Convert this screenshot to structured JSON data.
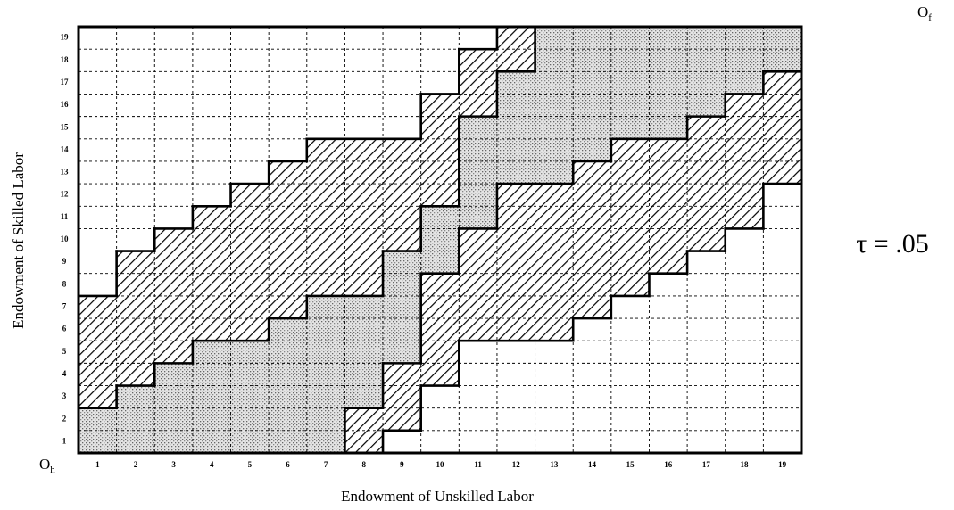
{
  "chart_data": {
    "type": "grid",
    "xlabel": "Endowment of Unskilled Labor",
    "ylabel": "Endowment of Skilled Labor",
    "annotation": "τ = .05",
    "origin_home": {
      "text": "O",
      "sub": "h"
    },
    "origin_foreign": {
      "text": "O",
      "sub": "f"
    },
    "xcategories": [
      "1",
      "2",
      "3",
      "4",
      "5",
      "6",
      "7",
      "8",
      "9",
      "10",
      "11",
      "12",
      "13",
      "14",
      "15",
      "16",
      "17",
      "18",
      "19"
    ],
    "ycategories": [
      "1",
      "2",
      "3",
      "4",
      "5",
      "6",
      "7",
      "8",
      "9",
      "10",
      "11",
      "12",
      "13",
      "14",
      "15",
      "16",
      "17",
      "18",
      "19"
    ],
    "cells": [
      [
        2,
        2,
        2,
        2,
        2,
        2,
        2,
        1,
        0,
        0,
        0,
        0,
        0,
        0,
        0,
        0,
        0,
        0,
        0
      ],
      [
        2,
        2,
        2,
        2,
        2,
        2,
        2,
        1,
        1,
        0,
        0,
        0,
        0,
        0,
        0,
        0,
        0,
        0,
        0
      ],
      [
        1,
        2,
        2,
        2,
        2,
        2,
        2,
        2,
        1,
        0,
        0,
        0,
        0,
        0,
        0,
        0,
        0,
        0,
        0
      ],
      [
        1,
        1,
        2,
        2,
        2,
        2,
        2,
        2,
        1,
        1,
        0,
        0,
        0,
        0,
        0,
        0,
        0,
        0,
        0
      ],
      [
        1,
        1,
        1,
        2,
        2,
        2,
        2,
        2,
        2,
        1,
        0,
        0,
        0,
        0,
        0,
        0,
        0,
        0,
        0
      ],
      [
        1,
        1,
        1,
        1,
        1,
        2,
        2,
        2,
        2,
        1,
        1,
        1,
        1,
        0,
        0,
        0,
        0,
        0,
        0
      ],
      [
        1,
        1,
        1,
        1,
        1,
        1,
        2,
        2,
        2,
        1,
        1,
        1,
        1,
        1,
        0,
        0,
        0,
        0,
        0
      ],
      [
        0,
        1,
        1,
        1,
        1,
        1,
        1,
        1,
        2,
        1,
        1,
        1,
        1,
        1,
        1,
        0,
        0,
        0,
        0
      ],
      [
        0,
        1,
        1,
        1,
        1,
        1,
        1,
        1,
        2,
        2,
        1,
        1,
        1,
        1,
        1,
        1,
        0,
        0,
        0
      ],
      [
        0,
        0,
        1,
        1,
        1,
        1,
        1,
        1,
        1,
        2,
        1,
        1,
        1,
        1,
        1,
        1,
        1,
        0,
        0
      ],
      [
        0,
        0,
        0,
        1,
        1,
        1,
        1,
        1,
        1,
        2,
        2,
        1,
        1,
        1,
        1,
        1,
        1,
        1,
        0
      ],
      [
        0,
        0,
        0,
        0,
        1,
        1,
        1,
        1,
        1,
        1,
        2,
        1,
        1,
        1,
        1,
        1,
        1,
        1,
        0
      ],
      [
        0,
        0,
        0,
        0,
        0,
        1,
        1,
        1,
        1,
        1,
        2,
        2,
        2,
        1,
        1,
        1,
        1,
        1,
        1
      ],
      [
        0,
        0,
        0,
        0,
        0,
        0,
        1,
        1,
        1,
        1,
        2,
        2,
        2,
        2,
        1,
        1,
        1,
        1,
        1
      ],
      [
        0,
        0,
        0,
        0,
        0,
        0,
        0,
        0,
        0,
        1,
        2,
        2,
        2,
        2,
        2,
        2,
        1,
        1,
        1
      ],
      [
        0,
        0,
        0,
        0,
        0,
        0,
        0,
        0,
        0,
        1,
        1,
        2,
        2,
        2,
        2,
        2,
        2,
        1,
        1
      ],
      [
        0,
        0,
        0,
        0,
        0,
        0,
        0,
        0,
        0,
        0,
        1,
        2,
        2,
        2,
        2,
        2,
        2,
        2,
        1
      ],
      [
        0,
        0,
        0,
        0,
        0,
        0,
        0,
        0,
        0,
        0,
        1,
        1,
        2,
        2,
        2,
        2,
        2,
        2,
        2
      ],
      [
        0,
        0,
        0,
        0,
        0,
        0,
        0,
        0,
        0,
        0,
        0,
        1,
        2,
        2,
        2,
        2,
        2,
        2,
        2
      ]
    ]
  }
}
